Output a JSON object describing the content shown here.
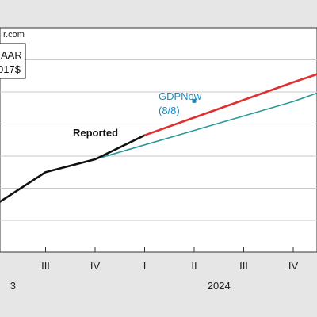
{
  "source_text": "r.com",
  "chart_data": {
    "type": "line",
    "box_lines": [
      "AAR",
      "017$"
    ],
    "x_categories": [
      "II",
      "III",
      "IV",
      "I",
      "II",
      "III",
      "IV",
      "I",
      "II"
    ],
    "year_labels": [
      {
        "text": "3",
        "at": 0.4
      },
      {
        "text": "2024",
        "at": 4.5
      }
    ],
    "ylim": [
      0,
      7
    ],
    "xlim": [
      0,
      8.5
    ],
    "grid": true,
    "series": [
      {
        "name": "Reported",
        "color": "#111111",
        "points": [
          [
            -0.5,
            1.0
          ],
          [
            1,
            2.5
          ],
          [
            2,
            2.9
          ],
          [
            3,
            3.65
          ]
        ]
      },
      {
        "name": "",
        "color": "#e03030",
        "points": [
          [
            3,
            3.65
          ],
          [
            4,
            4.2
          ],
          [
            5,
            4.75
          ],
          [
            6,
            5.3
          ],
          [
            7,
            5.82
          ],
          [
            8.5,
            6.7
          ]
        ]
      },
      {
        "name": "",
        "color": "#2a9a96",
        "points": [
          [
            2,
            2.9
          ],
          [
            3,
            3.35
          ],
          [
            4,
            3.8
          ],
          [
            5,
            4.25
          ],
          [
            6,
            4.7
          ],
          [
            7,
            5.25
          ],
          [
            8.5,
            6.35
          ]
        ]
      }
    ],
    "annotations": [
      {
        "text": "Reported",
        "color": "#111111",
        "bold": true
      },
      {
        "text": "GDPNow",
        "color": "#1a8bbf",
        "bold": false
      },
      {
        "text": "(8/8)",
        "color": "#1a8bbf",
        "bold": false
      }
    ],
    "marker": {
      "x": 4.0,
      "y": 4.72,
      "color": "#1a8bbf"
    }
  }
}
